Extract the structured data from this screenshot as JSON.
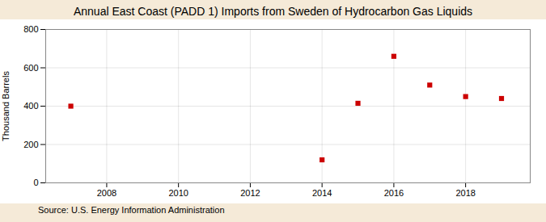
{
  "chart_data": {
    "type": "scatter",
    "title": "Annual East Coast (PADD 1) Imports from Sweden of Hydrocarbon Gas Liquids",
    "ylabel": "Thousand Barrels",
    "annotations": [
      "Source: U.S. Energy Information Administration"
    ],
    "x": [
      2007,
      2014,
      2015,
      2016,
      2017,
      2018,
      2019
    ],
    "values": [
      400,
      120,
      415,
      660,
      510,
      450,
      440
    ],
    "color": "#cc0000",
    "marker": "square",
    "xlim": [
      2006.3,
      2019.8
    ],
    "ylim": [
      0,
      800
    ],
    "xticks": [
      2008,
      2010,
      2012,
      2014,
      2016,
      2018
    ],
    "yticks": [
      0,
      200,
      400,
      600,
      800
    ],
    "grid": true
  }
}
